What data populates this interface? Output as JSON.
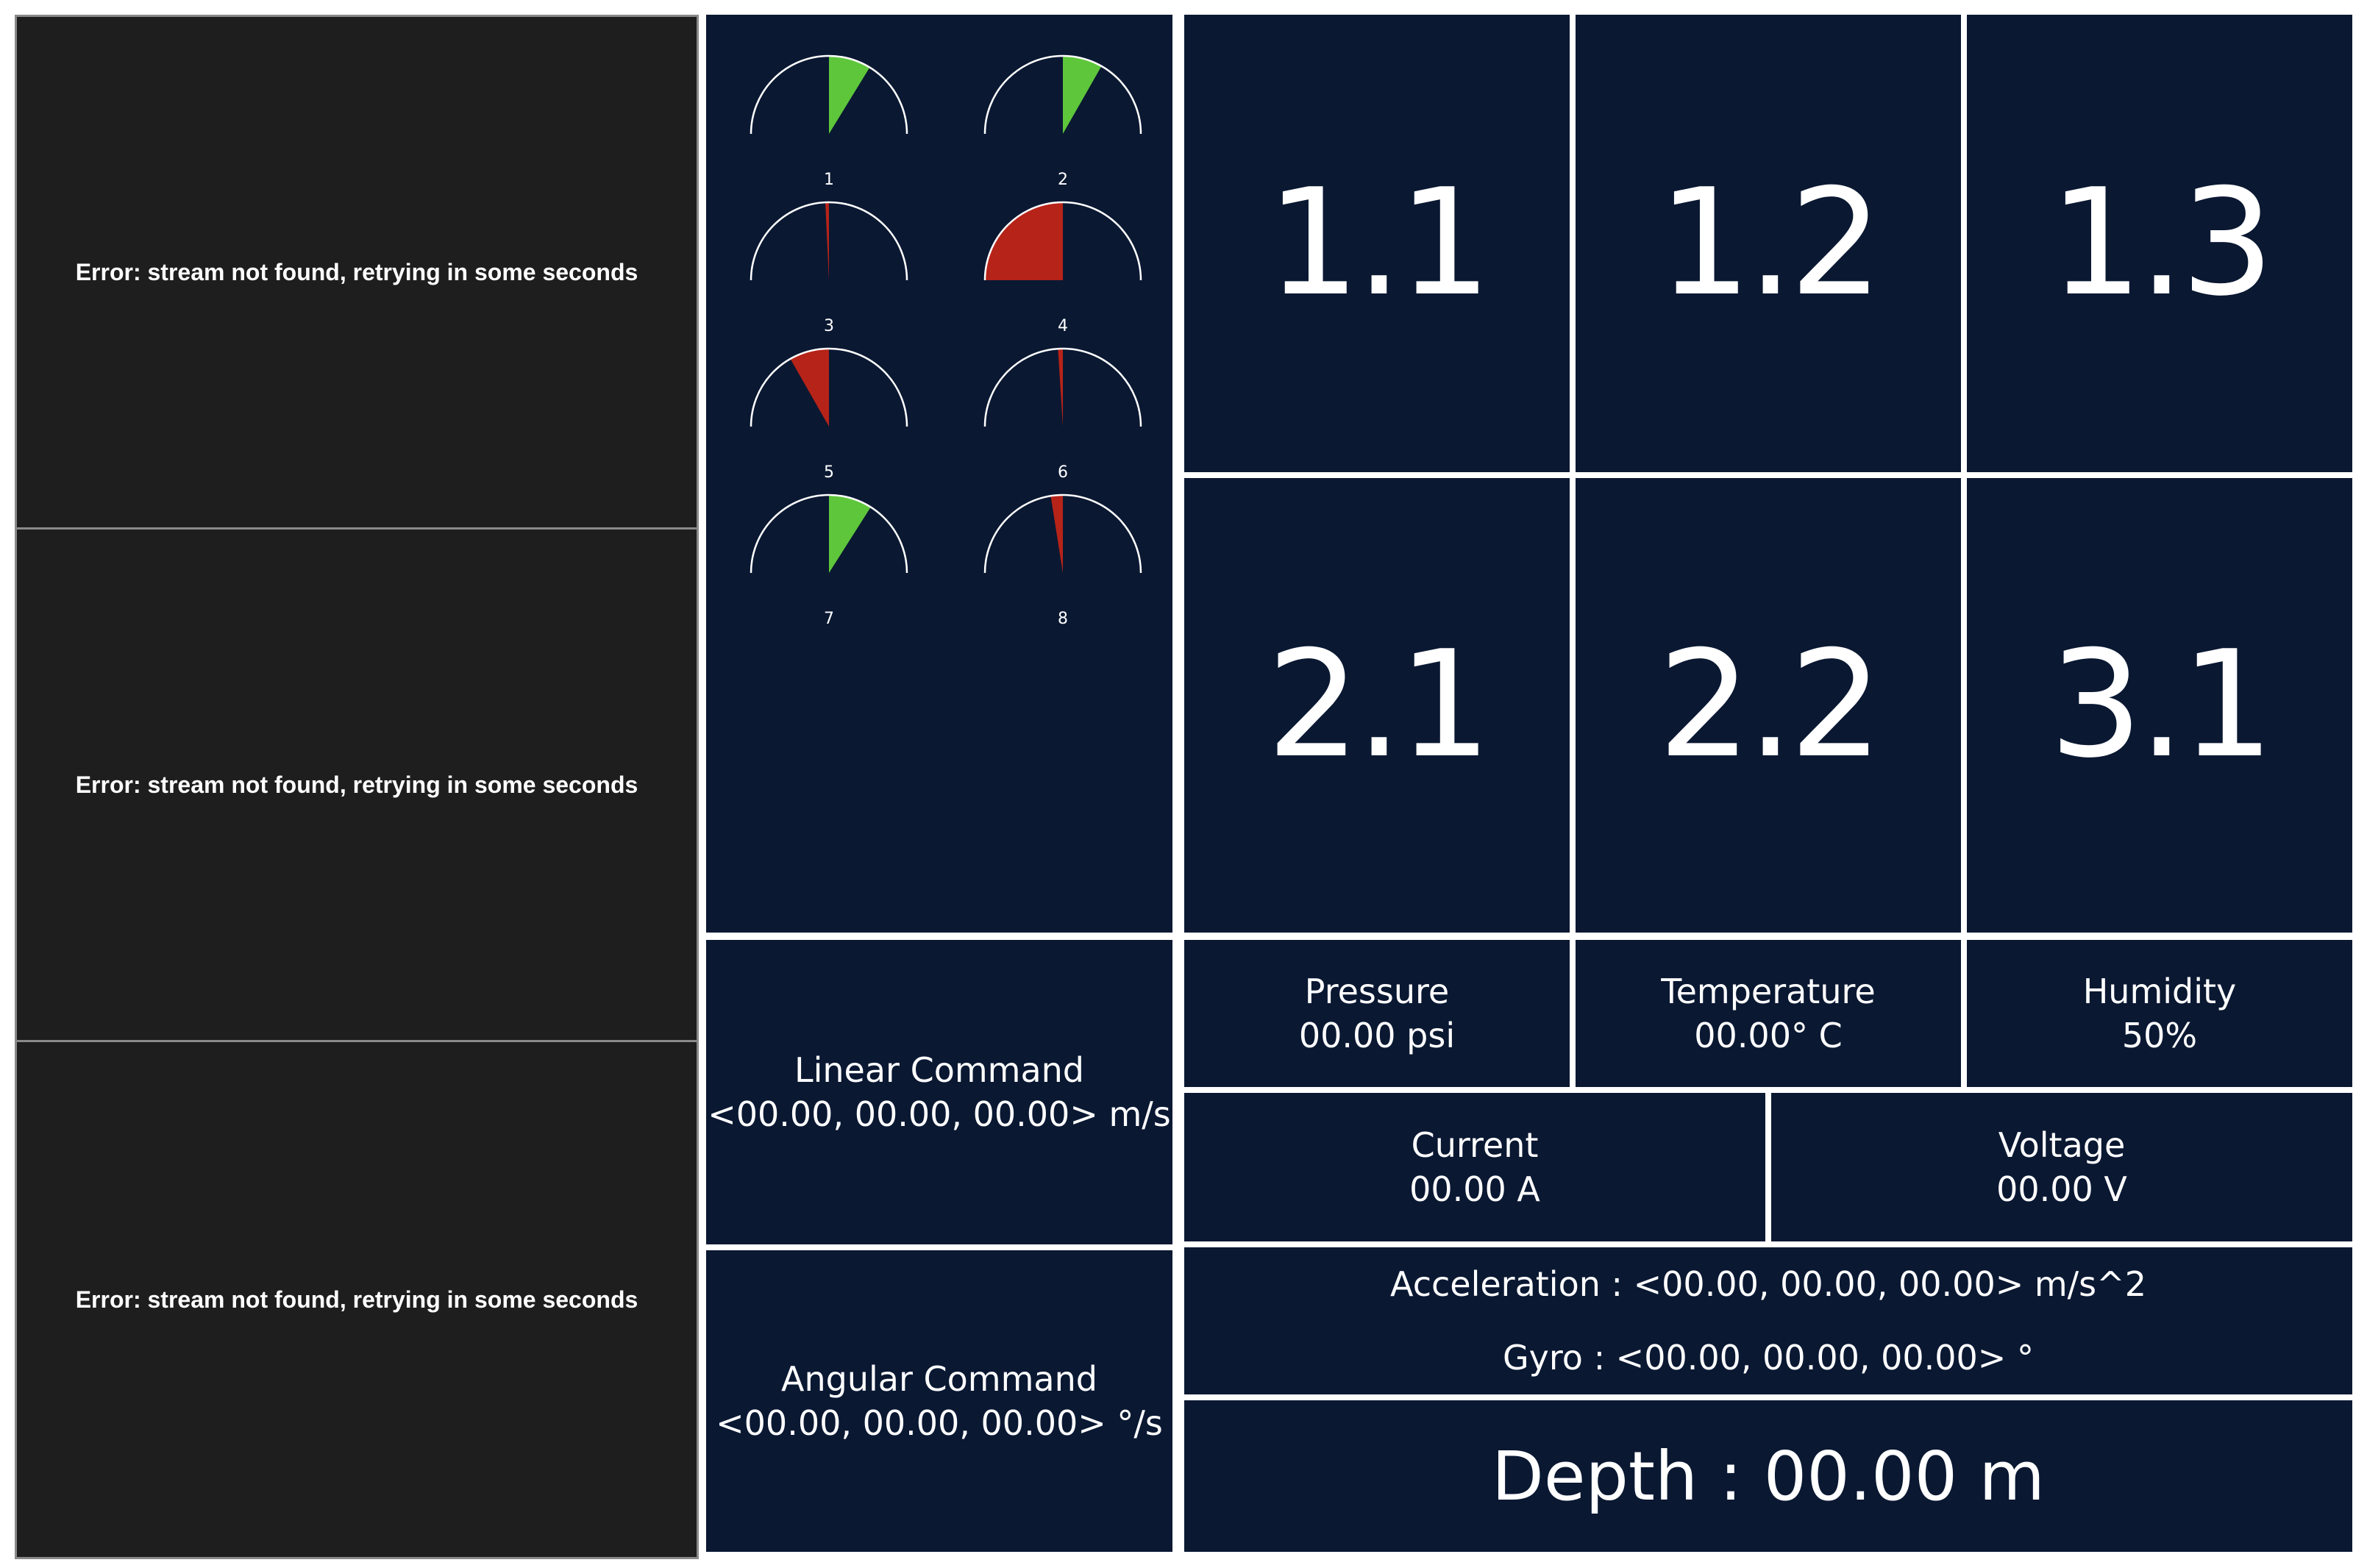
{
  "video_feeds": [
    {
      "message": "Error: stream not found, retrying in some seconds"
    },
    {
      "message": "Error: stream not found, retrying in some seconds"
    },
    {
      "message": "Error: stream not found, retrying in some seconds"
    }
  ],
  "gauges": [
    {
      "label": "1",
      "value_fraction": 0.35,
      "color": "#5ec63b"
    },
    {
      "label": "2",
      "value_fraction": 0.33,
      "color": "#5ec63b"
    },
    {
      "label": "3",
      "value_fraction": -0.03,
      "color": "#b62318"
    },
    {
      "label": "4",
      "value_fraction": -1.0,
      "color": "#b62318"
    },
    {
      "label": "5",
      "value_fraction": -0.33,
      "color": "#b62318"
    },
    {
      "label": "6",
      "value_fraction": -0.04,
      "color": "#b62318"
    },
    {
      "label": "7",
      "value_fraction": 0.36,
      "color": "#5ec63b"
    },
    {
      "label": "8",
      "value_fraction": -0.1,
      "color": "#b62318"
    }
  ],
  "tiles": [
    {
      "value": "1.1"
    },
    {
      "value": "1.2"
    },
    {
      "value": "1.3"
    },
    {
      "value": "2.1"
    },
    {
      "value": "2.2"
    },
    {
      "value": "3.1"
    }
  ],
  "pressure": {
    "label": "Pressure",
    "value": "00.00 psi"
  },
  "temperature": {
    "label": "Temperature",
    "value": "00.00° C"
  },
  "humidity": {
    "label": "Humidity",
    "value": "50%"
  },
  "current": {
    "label": "Current",
    "value": "00.00 A"
  },
  "voltage": {
    "label": "Voltage",
    "value": "00.00 V"
  },
  "linear_command": {
    "label": "Linear Command",
    "value": "<00.00, 00.00, 00.00> m/s"
  },
  "angular_command": {
    "label": "Angular Command",
    "value": "<00.00, 00.00, 00.00> °/s"
  },
  "imu": {
    "acceleration": "Acceleration : <00.00, 00.00, 00.00> m/s^2",
    "gyro": "Gyro : <00.00, 00.00, 00.00> °"
  },
  "depth": {
    "text": "Depth : 00.00 m"
  },
  "colors": {
    "panel_bg": "#0a1832",
    "video_bg": "#1e1e1e",
    "ok": "#5ec63b",
    "alert": "#b62318"
  }
}
